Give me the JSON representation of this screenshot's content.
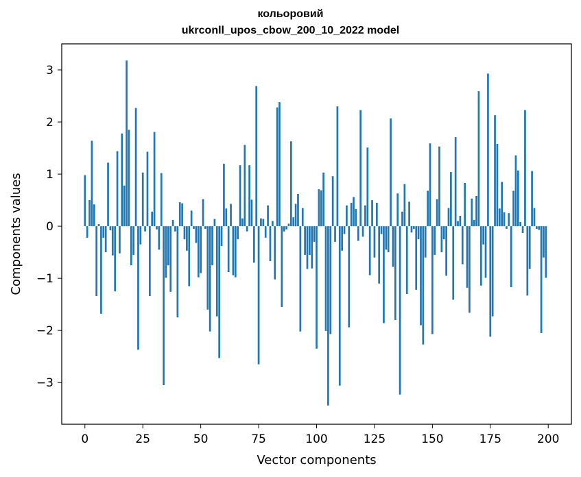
{
  "chart_data": {
    "type": "bar",
    "title": "кольоровий",
    "subtitle": "ukrconll_upos_cbow_200_10_2022 model",
    "xlabel": "Vector components",
    "ylabel": "Components values",
    "xlim": [
      -10,
      210
    ],
    "ylim": [
      -3.8,
      3.5
    ],
    "xticks": [
      0,
      25,
      50,
      75,
      100,
      125,
      150,
      175,
      200
    ],
    "yticks": [
      -3,
      -2,
      -1,
      0,
      1,
      2,
      3
    ],
    "xtick_labels": [
      "0",
      "25",
      "50",
      "75",
      "100",
      "125",
      "150",
      "175",
      "200"
    ],
    "ytick_labels": [
      "−3",
      "−2",
      "−1",
      "0",
      "1",
      "2",
      "3"
    ],
    "bar_color": "#1f77b4",
    "grid": false,
    "legend": "none",
    "x": [
      0,
      1,
      2,
      3,
      4,
      5,
      6,
      7,
      8,
      9,
      10,
      11,
      12,
      13,
      14,
      15,
      16,
      17,
      18,
      19,
      20,
      21,
      22,
      23,
      24,
      25,
      26,
      27,
      28,
      29,
      30,
      31,
      32,
      33,
      34,
      35,
      36,
      37,
      38,
      39,
      40,
      41,
      42,
      43,
      44,
      45,
      46,
      47,
      48,
      49,
      50,
      51,
      52,
      53,
      54,
      55,
      56,
      57,
      58,
      59,
      60,
      61,
      62,
      63,
      64,
      65,
      66,
      67,
      68,
      69,
      70,
      71,
      72,
      73,
      74,
      75,
      76,
      77,
      78,
      79,
      80,
      81,
      82,
      83,
      84,
      85,
      86,
      87,
      88,
      89,
      90,
      91,
      92,
      93,
      94,
      95,
      96,
      97,
      98,
      99,
      100,
      101,
      102,
      103,
      104,
      105,
      106,
      107,
      108,
      109,
      110,
      111,
      112,
      113,
      114,
      115,
      116,
      117,
      118,
      119,
      120,
      121,
      122,
      123,
      124,
      125,
      126,
      127,
      128,
      129,
      130,
      131,
      132,
      133,
      134,
      135,
      136,
      137,
      138,
      139,
      140,
      141,
      142,
      143,
      144,
      145,
      146,
      147,
      148,
      149,
      150,
      151,
      152,
      153,
      154,
      155,
      156,
      157,
      158,
      159,
      160,
      161,
      162,
      163,
      164,
      165,
      166,
      167,
      168,
      169,
      170,
      171,
      172,
      173,
      174,
      175,
      176,
      177,
      178,
      179,
      180,
      181,
      182,
      183,
      184,
      185,
      186,
      187,
      188,
      189,
      190,
      191,
      192,
      193,
      194,
      195,
      196,
      197,
      198,
      199
    ],
    "values": [
      0.98,
      -0.22,
      0.5,
      1.64,
      0.42,
      -1.34,
      0.04,
      -1.68,
      -0.22,
      -0.5,
      1.22,
      -0.08,
      -0.56,
      -1.25,
      1.44,
      -0.52,
      1.78,
      0.78,
      3.18,
      1.85,
      -0.75,
      -0.55,
      2.27,
      -2.37,
      -0.35,
      1.03,
      -0.1,
      1.43,
      -1.34,
      0.28,
      1.81,
      -0.06,
      -0.45,
      1.02,
      -3.05,
      -0.99,
      -0.75,
      -1.26,
      0.12,
      -0.1,
      -1.75,
      0.46,
      0.44,
      -0.25,
      -0.47,
      -1.15,
      0.3,
      -0.05,
      -0.32,
      -0.98,
      -0.9,
      0.52,
      -0.05,
      -1.6,
      -2.02,
      -0.75,
      0.14,
      -1.73,
      -2.53,
      -0.38,
      1.2,
      0.34,
      -0.88,
      0.43,
      -0.94,
      -0.98,
      -0.25,
      1.17,
      0.15,
      1.56,
      -0.1,
      1.17,
      0.51,
      -0.7,
      2.69,
      -2.65,
      0.15,
      0.14,
      -0.22,
      0.4,
      -0.67,
      0.1,
      -1.02,
      2.28,
      2.38,
      -1.55,
      -0.1,
      -0.06,
      0.05,
      1.63,
      0.17,
      0.43,
      0.62,
      -2.02,
      0.35,
      -0.55,
      -0.82,
      -0.55,
      -0.81,
      -0.3,
      -2.35,
      0.71,
      0.69,
      1.03,
      -2.01,
      -3.44,
      -2.07,
      0.96,
      -0.3,
      2.3,
      -3.06,
      -0.47,
      -0.15,
      0.4,
      -1.94,
      0.45,
      0.56,
      0.33,
      -0.28,
      2.23,
      -0.2,
      0.4,
      1.51,
      -0.94,
      0.5,
      -0.6,
      0.45,
      -1.1,
      -0.15,
      -1.86,
      -0.45,
      -0.5,
      2.07,
      -0.78,
      -1.8,
      0.63,
      -3.23,
      0.28,
      0.81,
      -1.3,
      0.47,
      -0.12,
      -0.05,
      -1.22,
      -0.25,
      -1.9,
      -2.27,
      -0.6,
      0.68,
      1.59,
      -2.07,
      -0.55,
      0.52,
      1.53,
      -0.5,
      -0.25,
      -0.95,
      0.35,
      1.04,
      -1.41,
      1.71,
      0.1,
      0.2,
      -0.73,
      0.83,
      -1.18,
      -1.66,
      0.53,
      0.12,
      0.58,
      2.59,
      -1.14,
      -0.35,
      -0.99,
      2.93,
      -2.12,
      -1.73,
      2.13,
      1.58,
      0.34,
      0.85,
      0.27,
      -0.05,
      0.25,
      -1.17,
      0.68,
      1.36,
      1.07,
      0.08,
      -0.13,
      2.23,
      -1.33,
      -0.82,
      1.06,
      0.35,
      -0.05,
      -0.07,
      -2.05,
      -0.6,
      -0.99
    ]
  }
}
